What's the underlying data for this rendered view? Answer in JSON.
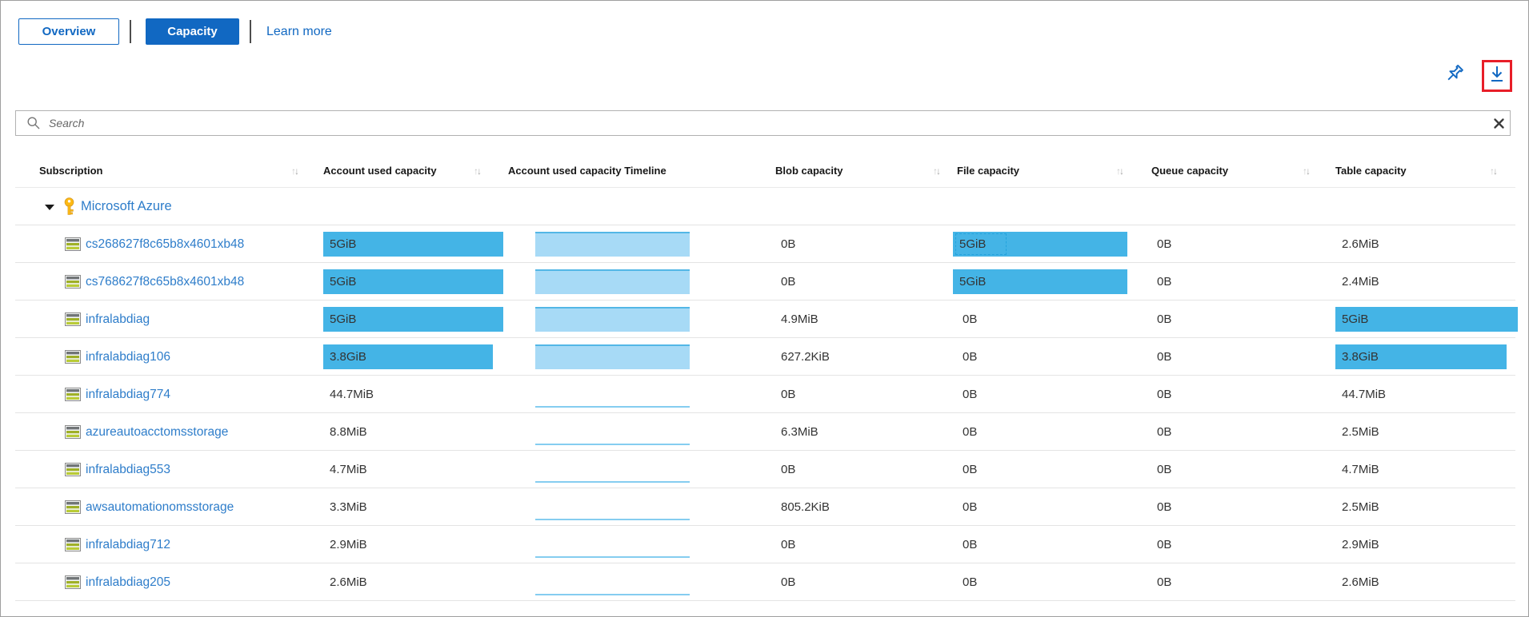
{
  "toolbar": {
    "overview_label": "Overview",
    "capacity_label": "Capacity",
    "learn_more_label": "Learn more"
  },
  "commands": {
    "pin_icon": "pin-icon",
    "download_icon": "download-icon",
    "download_highlight_color": "#e81e28"
  },
  "search": {
    "placeholder": "Search",
    "search_icon": "magnifier-icon",
    "clear_icon": "clear-x-icon"
  },
  "colors": {
    "accent_blue": "#1168c2",
    "link_blue": "#2e7dca",
    "bar_blue": "#44b4e6",
    "timeline_fill": "#a7daf6",
    "timeline_stroke": "#53b7e6",
    "timeline_line": "#85cdf0",
    "key_gold": "#fdb913"
  },
  "table": {
    "columns": [
      {
        "label": "Subscription",
        "sortable": true
      },
      {
        "label": "Account used capacity",
        "sortable": true
      },
      {
        "label": "Account used capacity Timeline",
        "sortable": false
      },
      {
        "label": "Blob capacity",
        "sortable": true
      },
      {
        "label": "File capacity",
        "sortable": true
      },
      {
        "label": "Queue capacity",
        "sortable": true
      },
      {
        "label": "Table capacity",
        "sortable": true
      }
    ],
    "group": {
      "label": "Microsoft Azure",
      "expanded": true,
      "icon": "subscription-key-icon"
    },
    "rows": [
      {
        "name": "cs268627f8c65b8x4601xb48",
        "account_used": {
          "value": "5GiB",
          "bar": 1.0
        },
        "timeline": "area",
        "blob": "0B",
        "file": {
          "value": "5GiB",
          "bar": 1.0,
          "focused": true
        },
        "queue": "0B",
        "table": {
          "value": "2.6MiB",
          "bar": null
        }
      },
      {
        "name": "cs768627f8c65b8x4601xb48",
        "account_used": {
          "value": "5GiB",
          "bar": 1.0
        },
        "timeline": "area",
        "blob": "0B",
        "file": {
          "value": "5GiB",
          "bar": 1.0
        },
        "queue": "0B",
        "table": {
          "value": "2.4MiB",
          "bar": null
        }
      },
      {
        "name": "infralabdiag",
        "account_used": {
          "value": "5GiB",
          "bar": 1.0
        },
        "timeline": "area",
        "blob": "4.9MiB",
        "file": {
          "value": "0B"
        },
        "queue": "0B",
        "table": {
          "value": "5GiB",
          "bar": 1.0
        }
      },
      {
        "name": "infralabdiag106",
        "account_used": {
          "value": "3.8GiB",
          "bar": 0.94
        },
        "timeline": "area",
        "blob": "627.2KiB",
        "file": {
          "value": "0B"
        },
        "queue": "0B",
        "table": {
          "value": "3.8GiB",
          "bar": 0.94
        }
      },
      {
        "name": "infralabdiag774",
        "account_used": {
          "value": "44.7MiB",
          "bar": null
        },
        "timeline": "line",
        "blob": "0B",
        "file": {
          "value": "0B"
        },
        "queue": "0B",
        "table": {
          "value": "44.7MiB",
          "bar": null
        }
      },
      {
        "name": "azureautoacctomsstorage",
        "account_used": {
          "value": "8.8MiB",
          "bar": null
        },
        "timeline": "line",
        "blob": "6.3MiB",
        "file": {
          "value": "0B"
        },
        "queue": "0B",
        "table": {
          "value": "2.5MiB",
          "bar": null
        }
      },
      {
        "name": "infralabdiag553",
        "account_used": {
          "value": "4.7MiB",
          "bar": null
        },
        "timeline": "line",
        "blob": "0B",
        "file": {
          "value": "0B"
        },
        "queue": "0B",
        "table": {
          "value": "4.7MiB",
          "bar": null
        }
      },
      {
        "name": "awsautomationomsstorage",
        "account_used": {
          "value": "3.3MiB",
          "bar": null
        },
        "timeline": "line",
        "blob": "805.2KiB",
        "file": {
          "value": "0B"
        },
        "queue": "0B",
        "table": {
          "value": "2.5MiB",
          "bar": null
        }
      },
      {
        "name": "infralabdiag712",
        "account_used": {
          "value": "2.9MiB",
          "bar": null
        },
        "timeline": "line",
        "blob": "0B",
        "file": {
          "value": "0B"
        },
        "queue": "0B",
        "table": {
          "value": "2.9MiB",
          "bar": null
        }
      },
      {
        "name": "infralabdiag205",
        "account_used": {
          "value": "2.6MiB",
          "bar": null
        },
        "timeline": "line",
        "blob": "0B",
        "file": {
          "value": "0B"
        },
        "queue": "0B",
        "table": {
          "value": "2.6MiB",
          "bar": null
        }
      }
    ]
  }
}
